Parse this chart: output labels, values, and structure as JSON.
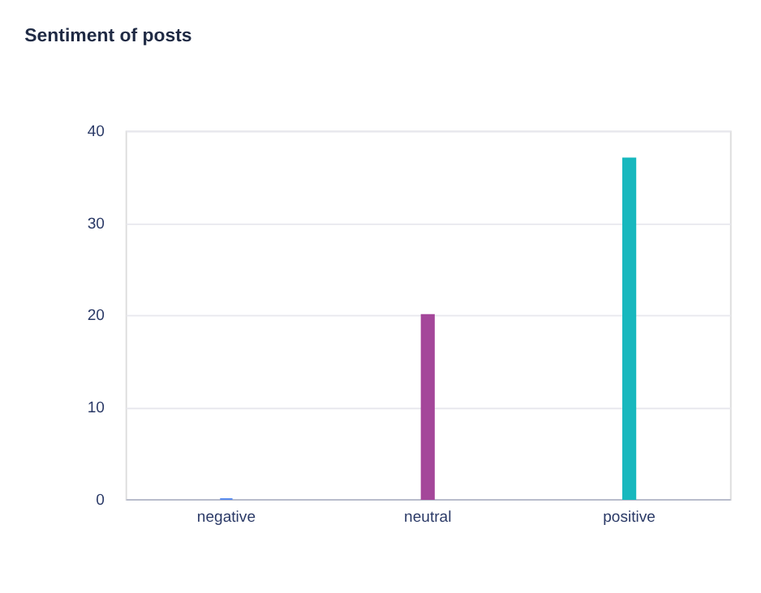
{
  "chart_data": {
    "type": "bar",
    "title": "Sentiment of posts",
    "categories": [
      "negative",
      "neutral",
      "positive"
    ],
    "values": [
      0,
      20,
      37
    ],
    "colors": [
      "#5b8def",
      "#a4479a",
      "#17b8be"
    ],
    "ylim": [
      0,
      40
    ],
    "yticks": [
      0,
      10,
      20,
      30,
      40
    ],
    "grid": "y"
  }
}
